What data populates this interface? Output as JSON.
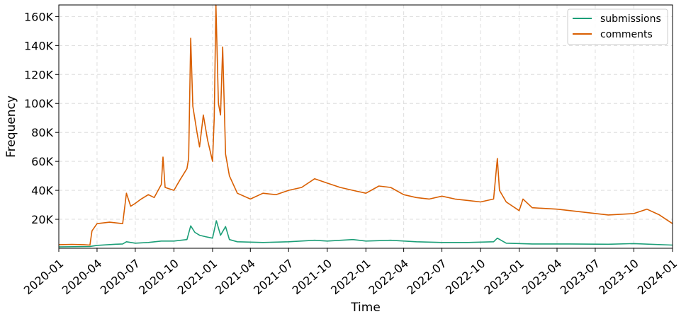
{
  "chart_data": {
    "type": "line",
    "xlabel": "Time",
    "ylabel": "Frequency",
    "x_ticks": [
      "2020-01",
      "2020-04",
      "2020-07",
      "2020-10",
      "2021-01",
      "2021-04",
      "2021-07",
      "2021-10",
      "2022-01",
      "2022-04",
      "2022-07",
      "2022-10",
      "2023-01",
      "2023-04",
      "2023-07",
      "2023-10",
      "2024-01"
    ],
    "y_ticks": [
      20000,
      40000,
      60000,
      80000,
      100000,
      120000,
      140000,
      160000
    ],
    "y_tick_labels": [
      "20K",
      "40K",
      "60K",
      "80K",
      "100K",
      "120K",
      "140K",
      "160K"
    ],
    "xlim": [
      "2020-01-01",
      "2024-01-01"
    ],
    "ylim": [
      0,
      168000
    ],
    "grid": true,
    "legend_position": "top-right",
    "series": [
      {
        "name": "submissions",
        "color": "#1b9e77",
        "points": [
          [
            "2020-01-01",
            1000
          ],
          [
            "2020-03-15",
            1200
          ],
          [
            "2020-04-01",
            2000
          ],
          [
            "2020-05-15",
            2800
          ],
          [
            "2020-06-01",
            3000
          ],
          [
            "2020-06-10",
            4500
          ],
          [
            "2020-07-01",
            3500
          ],
          [
            "2020-08-01",
            4000
          ],
          [
            "2020-09-01",
            5000
          ],
          [
            "2020-10-01",
            5000
          ],
          [
            "2020-11-01",
            6000
          ],
          [
            "2020-11-10",
            15500
          ],
          [
            "2020-11-20",
            11000
          ],
          [
            "2020-12-01",
            9000
          ],
          [
            "2020-12-15",
            8000
          ],
          [
            "2021-01-01",
            7000
          ],
          [
            "2021-01-10",
            19000
          ],
          [
            "2021-01-20",
            9000
          ],
          [
            "2021-02-01",
            15000
          ],
          [
            "2021-02-10",
            6000
          ],
          [
            "2021-03-01",
            4500
          ],
          [
            "2021-05-01",
            4000
          ],
          [
            "2021-07-01",
            4500
          ],
          [
            "2021-09-01",
            5500
          ],
          [
            "2021-10-01",
            5000
          ],
          [
            "2021-12-01",
            6000
          ],
          [
            "2022-01-01",
            5000
          ],
          [
            "2022-03-01",
            5500
          ],
          [
            "2022-05-01",
            4500
          ],
          [
            "2022-07-01",
            4000
          ],
          [
            "2022-09-01",
            4000
          ],
          [
            "2022-11-01",
            4500
          ],
          [
            "2022-11-10",
            7000
          ],
          [
            "2022-12-01",
            3500
          ],
          [
            "2023-02-01",
            3000
          ],
          [
            "2023-05-01",
            3000
          ],
          [
            "2023-08-01",
            2800
          ],
          [
            "2023-10-01",
            3200
          ],
          [
            "2024-01-01",
            2200
          ]
        ]
      },
      {
        "name": "comments",
        "color": "#d95f02",
        "points": [
          [
            "2020-01-01",
            2500
          ],
          [
            "2020-02-01",
            2700
          ],
          [
            "2020-03-01",
            2500
          ],
          [
            "2020-03-15",
            2200
          ],
          [
            "2020-03-20",
            12000
          ],
          [
            "2020-04-01",
            17000
          ],
          [
            "2020-05-01",
            18000
          ],
          [
            "2020-06-01",
            17000
          ],
          [
            "2020-06-10",
            38000
          ],
          [
            "2020-06-20",
            29000
          ],
          [
            "2020-07-01",
            31000
          ],
          [
            "2020-07-15",
            34000
          ],
          [
            "2020-08-01",
            37000
          ],
          [
            "2020-08-15",
            35000
          ],
          [
            "2020-09-01",
            44000
          ],
          [
            "2020-09-05",
            63000
          ],
          [
            "2020-09-10",
            42000
          ],
          [
            "2020-10-01",
            40000
          ],
          [
            "2020-10-15",
            47000
          ],
          [
            "2020-11-01",
            55000
          ],
          [
            "2020-11-05",
            62000
          ],
          [
            "2020-11-10",
            145000
          ],
          [
            "2020-11-15",
            98000
          ],
          [
            "2020-11-25",
            80000
          ],
          [
            "2020-12-01",
            70000
          ],
          [
            "2020-12-10",
            92000
          ],
          [
            "2020-12-20",
            75000
          ],
          [
            "2021-01-01",
            60000
          ],
          [
            "2021-01-05",
            90000
          ],
          [
            "2021-01-09",
            168000
          ],
          [
            "2021-01-15",
            100000
          ],
          [
            "2021-01-20",
            92000
          ],
          [
            "2021-01-25",
            139000
          ],
          [
            "2021-02-01",
            65000
          ],
          [
            "2021-02-10",
            50000
          ],
          [
            "2021-03-01",
            38000
          ],
          [
            "2021-04-01",
            34000
          ],
          [
            "2021-05-01",
            38000
          ],
          [
            "2021-06-01",
            37000
          ],
          [
            "2021-07-01",
            40000
          ],
          [
            "2021-08-01",
            42000
          ],
          [
            "2021-09-01",
            48000
          ],
          [
            "2021-10-01",
            45000
          ],
          [
            "2021-11-01",
            42000
          ],
          [
            "2021-12-01",
            40000
          ],
          [
            "2022-01-01",
            38000
          ],
          [
            "2022-02-01",
            43000
          ],
          [
            "2022-03-01",
            42000
          ],
          [
            "2022-04-01",
            37000
          ],
          [
            "2022-05-01",
            35000
          ],
          [
            "2022-06-01",
            34000
          ],
          [
            "2022-07-01",
            36000
          ],
          [
            "2022-08-01",
            34000
          ],
          [
            "2022-09-01",
            33000
          ],
          [
            "2022-10-01",
            32000
          ],
          [
            "2022-11-01",
            34000
          ],
          [
            "2022-11-10",
            62000
          ],
          [
            "2022-11-15",
            40000
          ],
          [
            "2022-12-01",
            32000
          ],
          [
            "2023-01-01",
            26000
          ],
          [
            "2023-01-10",
            34000
          ],
          [
            "2023-02-01",
            28000
          ],
          [
            "2023-04-01",
            27000
          ],
          [
            "2023-06-01",
            25000
          ],
          [
            "2023-08-01",
            23000
          ],
          [
            "2023-10-01",
            24000
          ],
          [
            "2023-11-01",
            27000
          ],
          [
            "2023-12-01",
            23000
          ],
          [
            "2024-01-01",
            17000
          ]
        ]
      }
    ]
  }
}
